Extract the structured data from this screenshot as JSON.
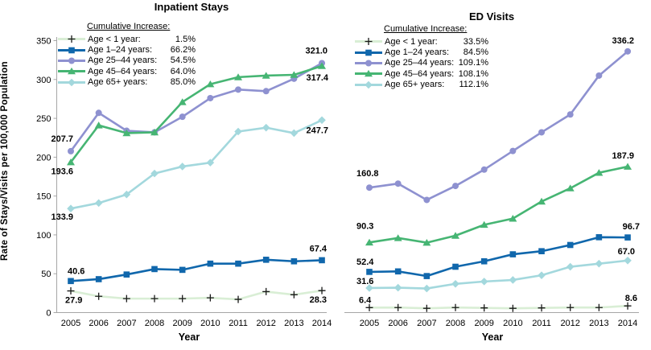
{
  "figure": {
    "y_axis_title": "Rate of Stays/Visits  per 100,000  Population",
    "x_axis_title": "Year",
    "y_ticks": [
      0,
      50,
      100,
      150,
      200,
      250,
      300,
      350
    ],
    "ylim": [
      0,
      350
    ],
    "years": [
      "2005",
      "2006",
      "2007",
      "2008",
      "2009",
      "2010",
      "2011",
      "2012",
      "2013",
      "2014"
    ],
    "axis_color": "#a6a6a6",
    "text_color": "#000000"
  },
  "chart_data": [
    {
      "type": "line",
      "title": "Inpatient Stays",
      "xlabel": "Year",
      "ylabel": "Rate of Stays/Visits per 100,000 Population",
      "ylim": [
        0,
        350
      ],
      "x": [
        2005,
        2006,
        2007,
        2008,
        2009,
        2010,
        2011,
        2012,
        2013,
        2014
      ],
      "legend_header": "Cumulative Increase:",
      "legend_position": "upper-left",
      "grid": false,
      "series": [
        {
          "name": "Age < 1 year",
          "legend_label": "Age < 1 year:",
          "cumulative_increase": "1.5%",
          "color": "#d9eed5",
          "marker": "plus",
          "marker_color": "#1a1a1a",
          "values": [
            27.9,
            21,
            18,
            18,
            18,
            19,
            17,
            27,
            23,
            28.3
          ],
          "first_label": "27.9",
          "last_label": "28.3"
        },
        {
          "name": "Age 1–24 years",
          "legend_label": "Age 1–24 years:",
          "cumulative_increase": "66.2%",
          "color": "#1067ac",
          "marker": "square",
          "values": [
            40.6,
            43,
            49,
            56,
            55,
            63,
            63,
            68,
            66,
            67.4
          ],
          "first_label": "40.6",
          "last_label": "67.4"
        },
        {
          "name": "Age 25–44 years",
          "legend_label": "Age 25–44 years:",
          "cumulative_increase": "54.5%",
          "color": "#8e91d0",
          "marker": "circle",
          "values": [
            207.7,
            257,
            234,
            232,
            252,
            276,
            287,
            285,
            301,
            321.0
          ],
          "first_label": "207.7",
          "last_label": "321.0"
        },
        {
          "name": "Age 45–64 years",
          "legend_label": "Age 45–64 years:",
          "cumulative_increase": "64.0%",
          "color": "#46b573",
          "marker": "triangle",
          "values": [
            193.6,
            241,
            231,
            232,
            271,
            294,
            303,
            305,
            306,
            317.4
          ],
          "first_label": "193.6",
          "last_label": "317.4"
        },
        {
          "name": "Age 65+ years",
          "legend_label": "Age 65+ years:",
          "cumulative_increase": "85.0%",
          "color": "#a3d8dd",
          "marker": "diamond",
          "values": [
            133.9,
            141,
            152,
            179,
            188,
            193,
            233,
            238,
            231,
            247.7
          ],
          "first_label": "133.9",
          "last_label": "247.7"
        }
      ]
    },
    {
      "type": "line",
      "title": "ED Visits",
      "xlabel": "Year",
      "ylabel": "Rate of Stays/Visits per 100,000 Population",
      "ylim": [
        0,
        350
      ],
      "x": [
        2005,
        2006,
        2007,
        2008,
        2009,
        2010,
        2011,
        2012,
        2013,
        2014
      ],
      "legend_header": "Cumulative Increase:",
      "legend_position": "upper-left",
      "grid": false,
      "series": [
        {
          "name": "Age < 1 year",
          "legend_label": "Age < 1 year:",
          "cumulative_increase": "33.5%",
          "color": "#d9eed5",
          "marker": "plus",
          "marker_color": "#1a1a1a",
          "values": [
            6.4,
            6.5,
            5.5,
            6.5,
            6.0,
            5.5,
            6.0,
            6.5,
            6.5,
            8.6
          ],
          "first_label": "6.4",
          "last_label": "8.6"
        },
        {
          "name": "Age 1–24 years",
          "legend_label": "Age 1–24 years:",
          "cumulative_increase": "84.5%",
          "color": "#1067ac",
          "marker": "square",
          "values": [
            52.4,
            53,
            47,
            59,
            66,
            75,
            79,
            87,
            97,
            96.7
          ],
          "first_label": "52.4",
          "last_label": "96.7"
        },
        {
          "name": "Age 25–44 years",
          "legend_label": "Age 25–44 years:",
          "cumulative_increase": "109.1%",
          "color": "#8e91d0",
          "marker": "circle",
          "values": [
            160.8,
            166,
            145,
            163,
            184,
            208,
            232,
            255,
            305,
            336.2
          ],
          "first_label": "160.8",
          "last_label": "336.2"
        },
        {
          "name": "Age 45–64 years",
          "legend_label": "Age 45–64 years:",
          "cumulative_increase": "108.1%",
          "color": "#46b573",
          "marker": "triangle",
          "values": [
            90.3,
            96,
            90,
            99,
            113,
            121,
            143,
            160,
            180,
            187.9
          ],
          "first_label": "90.3",
          "last_label": "187.9"
        },
        {
          "name": "Age 65+ years",
          "legend_label": "Age 65+ years:",
          "cumulative_increase": "112.1%",
          "color": "#a3d8dd",
          "marker": "diamond",
          "values": [
            31.6,
            32,
            31,
            37,
            40,
            42,
            48,
            59,
            63,
            67.0
          ],
          "first_label": "31.6",
          "last_label": "67.0"
        }
      ]
    }
  ]
}
